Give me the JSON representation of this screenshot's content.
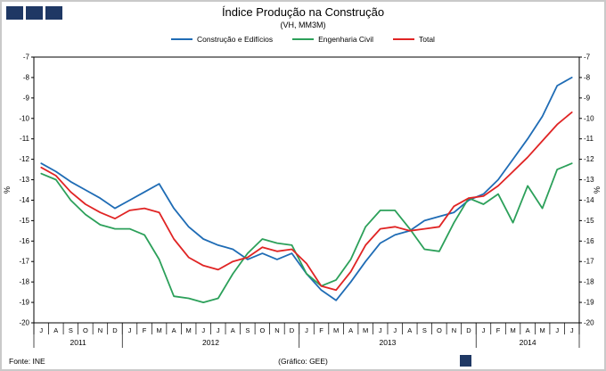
{
  "header": {
    "title": "Índice Produção na Construção",
    "subtitle": "(VH, MM3M)"
  },
  "legend": [
    {
      "label": "Construção e Edifícios",
      "color": "#1f6cb5"
    },
    {
      "label": "Engenharia Civil",
      "color": "#2ca05a"
    },
    {
      "label": "Total",
      "color": "#e02424"
    }
  ],
  "footer": {
    "source": "Fonte: INE",
    "credit": "(Gráfico: GEE)"
  },
  "decor": {
    "brand_color": "#1f3864"
  },
  "chart_data": {
    "type": "line",
    "title": "Índice Produção na Construção",
    "subtitle": "(VH, MM3M)",
    "ylabel": "%",
    "ylabel_right": "%",
    "ylim": [
      -20,
      -7
    ],
    "yticks": [
      -7,
      -8,
      -9,
      -10,
      -11,
      -12,
      -13,
      -14,
      -15,
      -16,
      -17,
      -18,
      -19,
      -20
    ],
    "grid": false,
    "legend_position": "top",
    "x_months": [
      "J",
      "A",
      "S",
      "O",
      "N",
      "D",
      "J",
      "F",
      "M",
      "A",
      "M",
      "J",
      "J",
      "A",
      "S",
      "O",
      "N",
      "D",
      "J",
      "F",
      "M",
      "A",
      "M",
      "J",
      "J",
      "A",
      "S",
      "O",
      "N",
      "D",
      "J",
      "F",
      "M",
      "A",
      "M",
      "J",
      "J"
    ],
    "years": [
      {
        "label": "2011",
        "months": 6
      },
      {
        "label": "2012",
        "months": 12
      },
      {
        "label": "2013",
        "months": 12
      },
      {
        "label": "2014",
        "months": 7
      }
    ],
    "series": [
      {
        "name": "Construção e Edifícios",
        "color": "#1f6cb5",
        "values": [
          -12.2,
          -12.6,
          -13.1,
          -13.5,
          -13.9,
          -14.4,
          -14.0,
          -13.6,
          -13.2,
          -14.4,
          -15.3,
          -15.9,
          -16.2,
          -16.4,
          -16.9,
          -16.6,
          -16.9,
          -16.6,
          -17.6,
          -18.4,
          -18.9,
          -18.0,
          -17.0,
          -16.1,
          -15.7,
          -15.5,
          -15.0,
          -14.8,
          -14.6,
          -14.0,
          -13.7,
          -13.0,
          -12.0,
          -11.0,
          -9.9,
          -8.4,
          -8.0
        ]
      },
      {
        "name": "Engenharia Civil",
        "color": "#2ca05a",
        "values": [
          -12.7,
          -13.0,
          -14.0,
          -14.7,
          -15.2,
          -15.4,
          -15.4,
          -15.7,
          -16.9,
          -18.7,
          -18.8,
          -19.0,
          -18.8,
          -17.6,
          -16.6,
          -15.9,
          -16.1,
          -16.2,
          -17.6,
          -18.2,
          -17.9,
          -16.9,
          -15.3,
          -14.5,
          -14.5,
          -15.4,
          -16.4,
          -16.5,
          -15.1,
          -13.9,
          -14.2,
          -13.7,
          -15.1,
          -13.3,
          -14.4,
          -12.5,
          -12.2
        ]
      },
      {
        "name": "Total",
        "color": "#e02424",
        "values": [
          -12.4,
          -12.8,
          -13.6,
          -14.2,
          -14.6,
          -14.9,
          -14.5,
          -14.4,
          -14.6,
          -15.9,
          -16.8,
          -17.2,
          -17.4,
          -17.0,
          -16.8,
          -16.3,
          -16.5,
          -16.4,
          -17.1,
          -18.2,
          -18.4,
          -17.5,
          -16.2,
          -15.4,
          -15.3,
          -15.5,
          -15.4,
          -15.3,
          -14.3,
          -13.9,
          -13.8,
          -13.3,
          -12.6,
          -11.9,
          -11.1,
          -10.3,
          -9.7
        ]
      }
    ]
  }
}
